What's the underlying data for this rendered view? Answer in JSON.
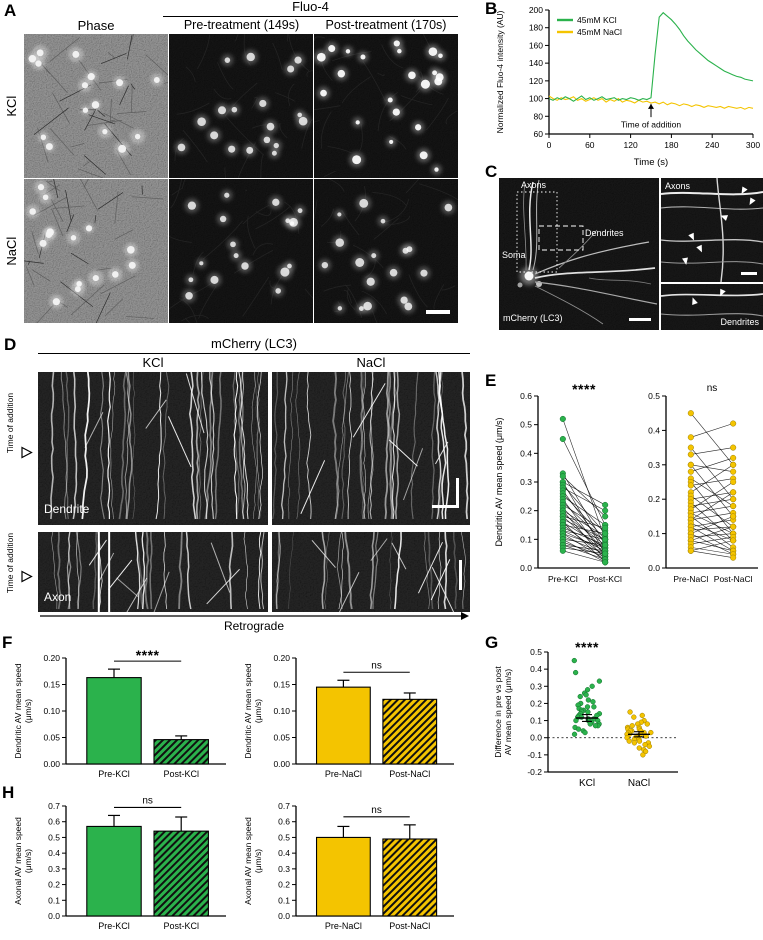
{
  "panelA": {
    "label": "A",
    "group_header": "Fluo-4",
    "col_headers": [
      "Phase",
      "Pre-treatment (149s)",
      "Post-treatment (170s)"
    ],
    "row_labels": [
      "KCl",
      "NaCl"
    ]
  },
  "panelB": {
    "label": "B"
  },
  "panelC": {
    "label": "C",
    "axons": "Axons",
    "dendrites": "Dendrites",
    "soma": "Soma",
    "stain": "mCherry (LC3)",
    "axons_detail": "Axons",
    "dendrites_detail": "Dendrites"
  },
  "panelD": {
    "label": "D",
    "header": "mCherry (LC3)",
    "col1": "KCl",
    "col2": "NaCl",
    "time_of_addition": "Time of addition",
    "dendrite": "Dendrite",
    "axon": "Axon",
    "retrograde": "Retrograde"
  },
  "panelE": {
    "label": "E"
  },
  "panelF": {
    "label": "F"
  },
  "panelG": {
    "label": "G"
  },
  "panelH": {
    "label": "H"
  },
  "chart_data": [
    {
      "id": "b_fluo4",
      "type": "line",
      "ylabel": "Normalized Fluo-4 intensity (AU)",
      "xlabel": "Time (s)",
      "xlim": [
        0,
        300
      ],
      "ylim": [
        60,
        200
      ],
      "xticks": [
        0,
        60,
        120,
        180,
        240,
        300
      ],
      "yticks": [
        60,
        80,
        100,
        120,
        140,
        160,
        180,
        200
      ],
      "ydec": 0,
      "annotation": {
        "text": "Time of addition",
        "x": 150
      },
      "legend_position": "top-left",
      "series": [
        {
          "name": "45mM KCl",
          "color": "#2BB24C",
          "x": [
            0,
            6,
            12,
            18,
            24,
            30,
            36,
            42,
            48,
            54,
            60,
            66,
            72,
            78,
            84,
            90,
            96,
            102,
            108,
            114,
            120,
            126,
            132,
            138,
            144,
            150,
            156,
            162,
            168,
            174,
            180,
            186,
            192,
            198,
            204,
            210,
            216,
            222,
            228,
            234,
            240,
            246,
            252,
            258,
            264,
            270,
            276,
            282,
            288,
            294,
            300
          ],
          "y": [
            100,
            98,
            101,
            99,
            102,
            100,
            97,
            100,
            103,
            99,
            101,
            98,
            100,
            102,
            99,
            100,
            101,
            98,
            100,
            99,
            101,
            100,
            98,
            100,
            99,
            101,
            150,
            192,
            197,
            193,
            189,
            184,
            178,
            171,
            165,
            160,
            155,
            151,
            147,
            143,
            140,
            137,
            134,
            131,
            129,
            127,
            125,
            124,
            122,
            121,
            120
          ]
        },
        {
          "name": "45mM NaCl",
          "color": "#F4C400",
          "x": [
            0,
            6,
            12,
            18,
            24,
            30,
            36,
            42,
            48,
            54,
            60,
            66,
            72,
            78,
            84,
            90,
            96,
            102,
            108,
            114,
            120,
            126,
            132,
            138,
            144,
            150,
            156,
            162,
            168,
            174,
            180,
            186,
            192,
            198,
            204,
            210,
            216,
            222,
            228,
            234,
            240,
            246,
            252,
            258,
            264,
            270,
            276,
            282,
            288,
            294,
            300
          ],
          "y": [
            103,
            100,
            98,
            101,
            99,
            100,
            102,
            98,
            100,
            97,
            99,
            101,
            98,
            100,
            96,
            99,
            97,
            100,
            96,
            98,
            97,
            95,
            98,
            96,
            97,
            95,
            96,
            94,
            96,
            93,
            95,
            94,
            92,
            94,
            93,
            91,
            93,
            92,
            90,
            92,
            91,
            90,
            91,
            89,
            91,
            90,
            89,
            90,
            88,
            90,
            89
          ]
        }
      ]
    },
    {
      "id": "e_kcl",
      "type": "paired-scatter",
      "ylabel": "Dendritic AV mean speed (μm/s)",
      "categories": [
        "Pre-KCl",
        "Post-KCl"
      ],
      "ylim": [
        0,
        0.6
      ],
      "yticks": [
        0,
        0.1,
        0.2,
        0.3,
        0.4,
        0.5,
        0.6
      ],
      "ydec": 1,
      "sig": "****",
      "color": "#2BB24C",
      "edge": "#156f2f",
      "pairs": [
        [
          0.52,
          0.1
        ],
        [
          0.45,
          0.15
        ],
        [
          0.33,
          0.08
        ],
        [
          0.32,
          0.18
        ],
        [
          0.3,
          0.05
        ],
        [
          0.3,
          0.22
        ],
        [
          0.29,
          0.12
        ],
        [
          0.28,
          0.2
        ],
        [
          0.27,
          0.07
        ],
        [
          0.26,
          0.1
        ],
        [
          0.25,
          0.15
        ],
        [
          0.24,
          0.04
        ],
        [
          0.23,
          0.09
        ],
        [
          0.22,
          0.13
        ],
        [
          0.21,
          0.06
        ],
        [
          0.2,
          0.11
        ],
        [
          0.2,
          0.03
        ],
        [
          0.19,
          0.08
        ],
        [
          0.18,
          0.14
        ],
        [
          0.18,
          0.05
        ],
        [
          0.17,
          0.1
        ],
        [
          0.16,
          0.07
        ],
        [
          0.16,
          0.02
        ],
        [
          0.15,
          0.12
        ],
        [
          0.15,
          0.04
        ],
        [
          0.14,
          0.08
        ],
        [
          0.13,
          0.06
        ],
        [
          0.13,
          0.1
        ],
        [
          0.12,
          0.03
        ],
        [
          0.12,
          0.07
        ],
        [
          0.11,
          0.05
        ],
        [
          0.1,
          0.08
        ],
        [
          0.1,
          0.02
        ],
        [
          0.09,
          0.04
        ],
        [
          0.08,
          0.06
        ],
        [
          0.08,
          0.03
        ],
        [
          0.07,
          0.05
        ],
        [
          0.06,
          0.02
        ]
      ]
    },
    {
      "id": "e_nacl",
      "type": "paired-scatter",
      "categories": [
        "Pre-NaCl",
        "Post-NaCl"
      ],
      "ylim": [
        0,
        0.5
      ],
      "yticks": [
        0,
        0.1,
        0.2,
        0.3,
        0.4,
        0.5
      ],
      "ydec": 1,
      "sig": "ns",
      "color": "#F4C400",
      "edge": "#9c7d00",
      "pairs": [
        [
          0.45,
          0.3
        ],
        [
          0.38,
          0.42
        ],
        [
          0.35,
          0.2
        ],
        [
          0.33,
          0.35
        ],
        [
          0.3,
          0.15
        ],
        [
          0.3,
          0.28
        ],
        [
          0.28,
          0.32
        ],
        [
          0.26,
          0.18
        ],
        [
          0.25,
          0.1
        ],
        [
          0.24,
          0.26
        ],
        [
          0.22,
          0.3
        ],
        [
          0.21,
          0.12
        ],
        [
          0.2,
          0.22
        ],
        [
          0.19,
          0.08
        ],
        [
          0.18,
          0.2
        ],
        [
          0.17,
          0.25
        ],
        [
          0.16,
          0.1
        ],
        [
          0.16,
          0.18
        ],
        [
          0.15,
          0.06
        ],
        [
          0.14,
          0.16
        ],
        [
          0.14,
          0.22
        ],
        [
          0.13,
          0.08
        ],
        [
          0.12,
          0.14
        ],
        [
          0.12,
          0.05
        ],
        [
          0.11,
          0.12
        ],
        [
          0.1,
          0.15
        ],
        [
          0.1,
          0.04
        ],
        [
          0.09,
          0.1
        ],
        [
          0.08,
          0.12
        ],
        [
          0.08,
          0.05
        ],
        [
          0.07,
          0.09
        ],
        [
          0.06,
          0.04
        ],
        [
          0.05,
          0.08
        ],
        [
          0.05,
          0.03
        ]
      ]
    },
    {
      "id": "f_kcl",
      "type": "bar",
      "ylabel": [
        "Dendritic AV mean speed",
        "(μm/s)"
      ],
      "categories": [
        "Pre-KCl",
        "Post-KCl"
      ],
      "values": [
        0.163,
        0.046
      ],
      "errors": [
        0.016,
        0.007
      ],
      "ylim": [
        0,
        0.2
      ],
      "yticks": [
        0,
        0.05,
        0.1,
        0.15,
        0.2
      ],
      "ydec": 2,
      "sig": "****",
      "colors": [
        "#2BB24C",
        "#2BB24C"
      ],
      "hatch": [
        false,
        true
      ]
    },
    {
      "id": "f_nacl",
      "type": "bar",
      "ylabel": [
        "Dendritic AV mean speed",
        "(μm/s)"
      ],
      "categories": [
        "Pre-NaCl",
        "Post-NaCl"
      ],
      "values": [
        0.145,
        0.122
      ],
      "errors": [
        0.013,
        0.012
      ],
      "ylim": [
        0,
        0.2
      ],
      "yticks": [
        0,
        0.05,
        0.1,
        0.15,
        0.2
      ],
      "ydec": 2,
      "sig": "ns",
      "colors": [
        "#F4C400",
        "#F4C400"
      ],
      "hatch": [
        false,
        true
      ]
    },
    {
      "id": "g_diff",
      "type": "jitter-scatter",
      "ylabel": [
        "Difference in pre vs post",
        "AV mean speed (μm/s)"
      ],
      "categories": [
        "KCl",
        "NaCl"
      ],
      "colors": [
        "#2BB24C",
        "#F4C400"
      ],
      "edges": [
        "#156f2f",
        "#9c7d00"
      ],
      "ylim": [
        -0.2,
        0.5
      ],
      "yticks": [
        -0.2,
        -0.1,
        0,
        0.1,
        0.2,
        0.3,
        0.4,
        0.5
      ],
      "ydec": 1,
      "sig": "****",
      "zero_line": true,
      "means": [
        0.115,
        0.02
      ],
      "errs": [
        0.02,
        0.015
      ],
      "groups": [
        [
          0.45,
          0.38,
          0.33,
          0.3,
          0.28,
          0.26,
          0.25,
          0.24,
          0.22,
          0.21,
          0.2,
          0.19,
          0.18,
          0.18,
          0.17,
          0.16,
          0.16,
          0.15,
          0.15,
          0.14,
          0.14,
          0.13,
          0.13,
          0.12,
          0.12,
          0.12,
          0.11,
          0.11,
          0.1,
          0.1,
          0.1,
          0.09,
          0.09,
          0.08,
          0.08,
          0.07,
          0.07,
          0.06,
          0.05,
          0.04,
          0.03,
          0.02
        ],
        [
          0.15,
          0.13,
          0.12,
          0.1,
          0.09,
          0.08,
          0.08,
          0.07,
          0.06,
          0.06,
          0.05,
          0.05,
          0.04,
          0.04,
          0.04,
          0.03,
          0.03,
          0.03,
          0.02,
          0.02,
          0.02,
          0.01,
          0.01,
          0.01,
          0.0,
          0.0,
          0.0,
          -0.01,
          -0.01,
          -0.02,
          -0.02,
          -0.03,
          -0.03,
          -0.04,
          -0.05,
          -0.06,
          -0.07,
          -0.08,
          -0.1
        ]
      ]
    },
    {
      "id": "h_kcl",
      "type": "bar",
      "ylabel": [
        "Axonal AV mean speed",
        "(μm/s)"
      ],
      "categories": [
        "Pre-KCl",
        "Post-KCl"
      ],
      "values": [
        0.57,
        0.54
      ],
      "errors": [
        0.07,
        0.09
      ],
      "ylim": [
        0,
        0.7
      ],
      "yticks": [
        0,
        0.1,
        0.2,
        0.3,
        0.4,
        0.5,
        0.6,
        0.7
      ],
      "ydec": 1,
      "sig": "ns",
      "colors": [
        "#2BB24C",
        "#2BB24C"
      ],
      "hatch": [
        false,
        true
      ]
    },
    {
      "id": "h_nacl",
      "type": "bar",
      "ylabel": [
        "Axonal AV mean speed",
        "(μm/s)"
      ],
      "categories": [
        "Pre-NaCl",
        "Post-NaCl"
      ],
      "values": [
        0.5,
        0.49
      ],
      "errors": [
        0.07,
        0.09
      ],
      "ylim": [
        0,
        0.7
      ],
      "yticks": [
        0,
        0.1,
        0.2,
        0.3,
        0.4,
        0.5,
        0.6,
        0.7
      ],
      "ydec": 1,
      "sig": "ns",
      "colors": [
        "#F4C400",
        "#F4C400"
      ],
      "hatch": [
        false,
        true
      ]
    }
  ]
}
